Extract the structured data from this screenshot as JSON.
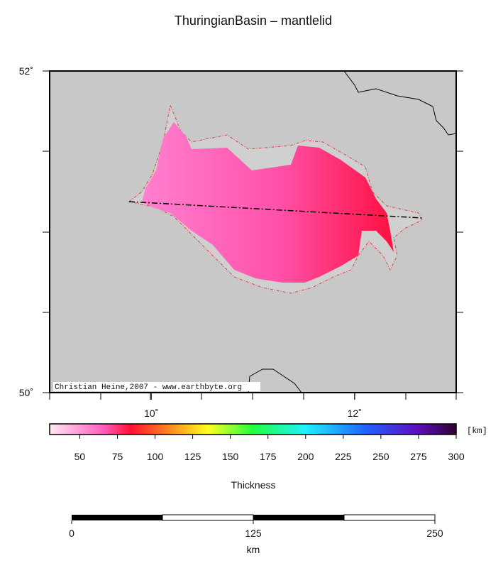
{
  "title": "ThuringianBasin – mantlelid",
  "map": {
    "xlim": [
      9,
      13
    ],
    "ylim": [
      50,
      52
    ],
    "xticks": [
      {
        "value": 10,
        "label": "10˚"
      },
      {
        "value": 12,
        "label": "12˚"
      }
    ],
    "yticks": [
      {
        "value": 50,
        "label": "50˚"
      },
      {
        "value": 52,
        "label": "52˚"
      }
    ],
    "credit": "Christian Heine,2007 - www.earthbyte.org"
  },
  "colorbar": {
    "lim": [
      30,
      300
    ],
    "ticks": [
      50,
      75,
      100,
      125,
      150,
      175,
      200,
      225,
      250,
      275,
      300
    ],
    "unit": "[km]",
    "label": "Thickness"
  },
  "scalebar": {
    "lim": [
      0,
      250
    ],
    "ticks": [
      0,
      125,
      250
    ],
    "unit": "km"
  }
}
